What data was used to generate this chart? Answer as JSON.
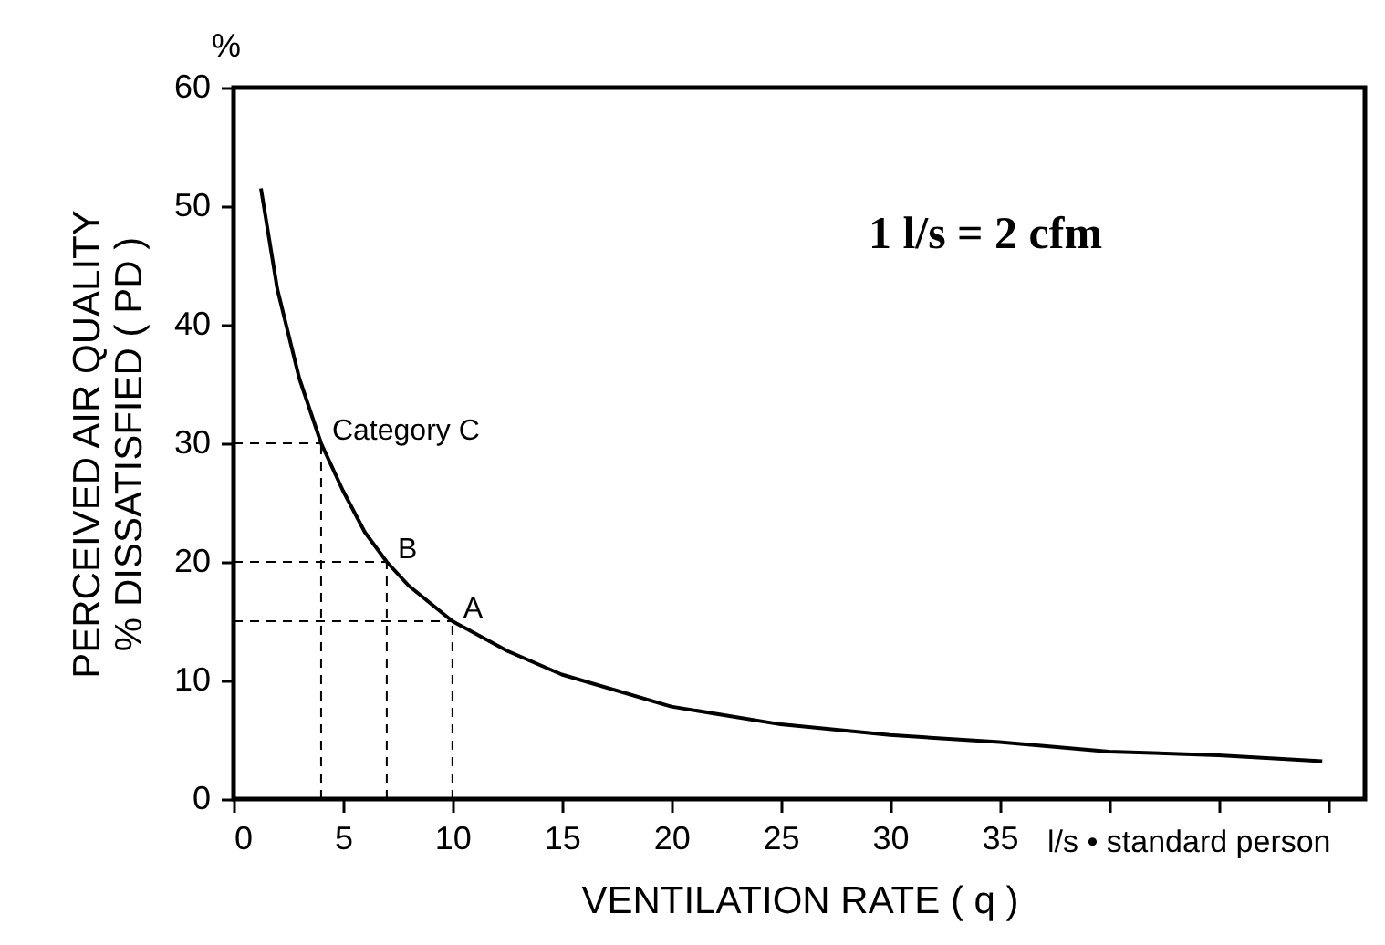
{
  "chart_data": {
    "type": "line",
    "xlabel": "VENTILATION RATE ( q )",
    "ylabel": "PERCEIVED AIR QUALITY\n% DISSATISFIED ( PD )",
    "x": [
      1.25,
      2,
      3,
      4,
      5,
      6,
      7,
      8,
      10,
      12.5,
      15,
      20,
      25,
      30,
      35,
      40,
      45,
      49.75
    ],
    "series": [
      {
        "color": "#000000",
        "values": [
          51.5,
          43,
          35.5,
          30,
          26,
          22.5,
          20,
          18,
          15,
          12.5,
          10.5,
          7.8,
          6.3,
          5.4,
          4.8,
          4.0,
          3.7,
          3.2
        ]
      }
    ],
    "xlim": [
      0,
      51.7
    ],
    "ylim": [
      0,
      60
    ],
    "xticks": [
      0,
      5,
      10,
      15,
      20,
      25,
      30,
      35,
      {
        "value": 40,
        "label": null
      },
      {
        "value": 45,
        "label": null
      },
      {
        "value": 50,
        "label": null
      }
    ],
    "yticks": [
      0,
      10,
      20,
      30,
      40,
      50,
      60
    ],
    "annotations": [
      "%",
      "1 l/s = 2 cfm",
      "l/s • standard person",
      {
        "text": "Category  C",
        "x": 4,
        "y": 30
      },
      {
        "text": "B",
        "x": 7,
        "y": 20
      },
      {
        "text": "A",
        "x": 10,
        "y": 15
      }
    ],
    "grid": false,
    "line_style": "solid",
    "marker": "none"
  }
}
